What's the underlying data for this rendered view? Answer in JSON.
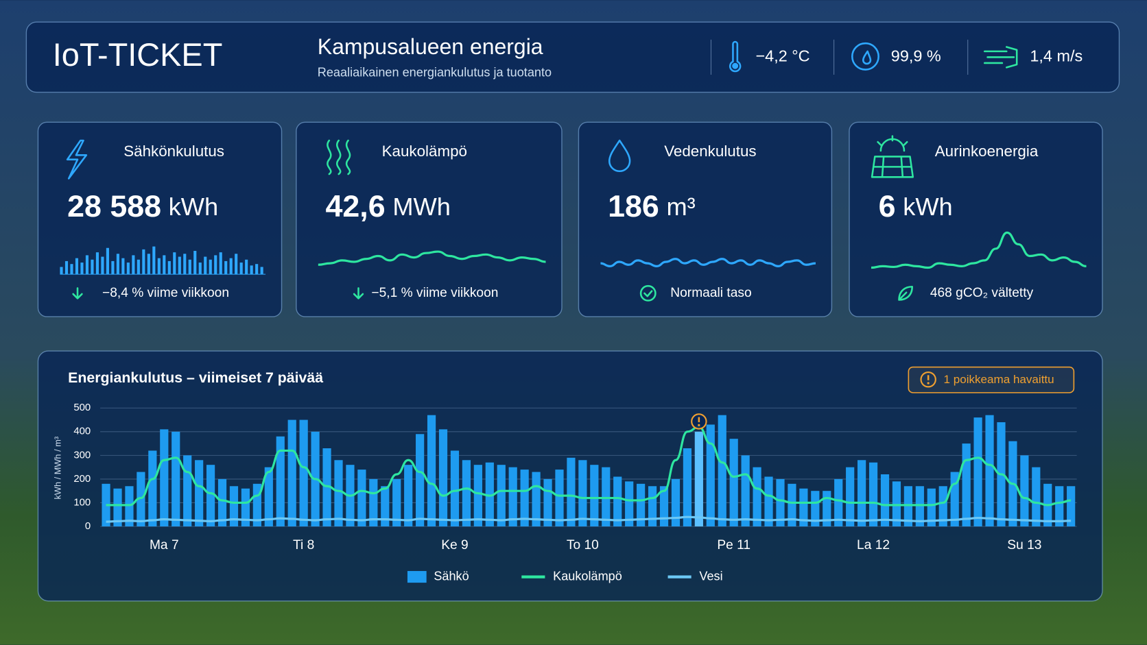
{
  "header": {
    "logo": "IoT-TICKET",
    "title": "Kampusalueen energia",
    "subtitle": "Reaaliaikainen energiankulutus ja tuotanto",
    "weather": [
      "−4,2 °C",
      "99,9 %",
      "1,4 m/s"
    ]
  },
  "cards": [
    {
      "title": "Sähkönkulutus",
      "value": "28 588",
      "unit": "kWh",
      "note": "−8,4 % viime viikkoon",
      "sparkline_type": "bar",
      "sparkline": [
        10,
        18,
        14,
        22,
        16,
        26,
        20,
        30,
        24,
        36,
        18,
        28,
        22,
        16,
        26,
        20,
        34,
        28,
        38,
        22,
        26,
        18,
        30,
        24,
        28,
        20,
        32,
        16,
        24,
        20,
        26,
        30,
        18,
        22,
        28,
        16,
        20,
        12,
        14,
        10
      ]
    },
    {
      "title": "Kaukolämpö",
      "value": "42,6",
      "unit": "MWh",
      "note": "−5,1 % viime viikkoon",
      "sparkline_type": "line",
      "sparkline": [
        8,
        10,
        14,
        12,
        16,
        20,
        14,
        22,
        18,
        24,
        26,
        20,
        16,
        20,
        22,
        18,
        14,
        18,
        16,
        12
      ]
    },
    {
      "title": "Vedenkulutus",
      "value": "186",
      "unit": "m³",
      "note": "Normaali taso",
      "sparkline_type": "line",
      "sparkline": [
        10,
        6,
        12,
        8,
        14,
        10,
        6,
        12,
        16,
        10,
        14,
        8,
        12,
        16,
        10,
        14,
        8,
        14,
        10,
        6,
        12,
        14,
        8,
        10
      ]
    },
    {
      "title": "Aurinkoenergia",
      "value": "6",
      "unit": "kWh",
      "note": "468 gCO₂ vältetty",
      "sparkline_type": "line",
      "sparkline": [
        4,
        6,
        5,
        8,
        6,
        4,
        10,
        8,
        6,
        10,
        14,
        30,
        52,
        36,
        20,
        22,
        14,
        18,
        12,
        6
      ]
    }
  ],
  "chart_data": {
    "type": "bar",
    "title": "Energiankulutus – viimeiset 7 päivää",
    "y_label": "kWh / MWh / m³",
    "alert": "1 poikkeama havaittu",
    "anomaly_index": 51,
    "categories": [
      null,
      null,
      null,
      null,
      null,
      "Ma 7",
      null,
      null,
      null,
      null,
      null,
      null,
      null,
      null,
      null,
      null,
      null,
      "Ti 8",
      null,
      null,
      null,
      null,
      null,
      null,
      null,
      null,
      null,
      null,
      null,
      null,
      "Ke 9",
      null,
      null,
      null,
      null,
      null,
      null,
      null,
      null,
      null,
      null,
      "To 10",
      null,
      null,
      null,
      null,
      null,
      null,
      null,
      null,
      null,
      null,
      null,
      null,
      "Pe 11",
      null,
      null,
      null,
      null,
      null,
      null,
      null,
      null,
      null,
      null,
      null,
      "La 12",
      null,
      null,
      null,
      null,
      null,
      null,
      null,
      null,
      null,
      null,
      null,
      null,
      "Su 13",
      null,
      null,
      null,
      null
    ],
    "ylim": [
      0,
      500
    ],
    "yticks": [
      0,
      100,
      200,
      300,
      400,
      500
    ],
    "grid": true,
    "series": [
      {
        "name": "Sähkö",
        "type": "bar",
        "color": "#1e9bf0",
        "values": [
          180,
          160,
          170,
          230,
          320,
          410,
          400,
          300,
          280,
          260,
          200,
          170,
          160,
          180,
          250,
          380,
          450,
          450,
          400,
          330,
          280,
          260,
          240,
          200,
          170,
          200,
          260,
          390,
          470,
          410,
          320,
          280,
          260,
          270,
          260,
          250,
          240,
          230,
          200,
          240,
          290,
          280,
          260,
          250,
          210,
          190,
          180,
          170,
          170,
          200,
          330,
          400,
          430,
          470,
          370,
          300,
          250,
          210,
          200,
          180,
          160,
          150,
          150,
          200,
          250,
          280,
          270,
          220,
          190,
          170,
          170,
          160,
          170,
          230,
          350,
          460,
          470,
          440,
          360,
          300,
          250,
          180,
          170,
          170
        ]
      },
      {
        "name": "Kaukolämpö",
        "type": "line",
        "color": "#2ee6a0",
        "values": [
          90,
          90,
          90,
          120,
          200,
          280,
          290,
          230,
          170,
          140,
          110,
          100,
          100,
          130,
          230,
          320,
          320,
          250,
          200,
          170,
          150,
          130,
          150,
          140,
          160,
          220,
          280,
          230,
          180,
          130,
          150,
          160,
          140,
          130,
          150,
          150,
          150,
          170,
          150,
          130,
          130,
          120,
          120,
          120,
          120,
          110,
          110,
          120,
          150,
          280,
          400,
          420,
          350,
          270,
          210,
          220,
          160,
          130,
          110,
          100,
          100,
          100,
          120,
          110,
          100,
          100,
          100,
          90,
          90,
          90,
          90,
          90,
          100,
          180,
          280,
          290,
          260,
          220,
          180,
          120,
          100,
          90,
          100,
          110
        ]
      },
      {
        "name": "Vesi",
        "type": "line",
        "color": "#6cc8f5",
        "values": [
          20,
          22,
          24,
          22,
          26,
          30,
          28,
          26,
          24,
          22,
          26,
          30,
          28,
          26,
          30,
          34,
          32,
          28,
          26,
          30,
          32,
          28,
          26,
          30,
          30,
          28,
          26,
          32,
          30,
          28,
          26,
          28,
          30,
          28,
          26,
          30,
          32,
          30,
          28,
          26,
          28,
          32,
          30,
          28,
          26,
          28,
          30,
          32,
          34,
          36,
          40,
          38,
          34,
          30,
          28,
          30,
          28,
          26,
          28,
          30,
          26,
          24,
          26,
          28,
          26,
          24,
          26,
          28,
          26,
          24,
          22,
          24,
          26,
          28,
          32,
          36,
          34,
          30,
          28,
          26,
          24,
          22,
          22,
          24
        ]
      }
    ]
  }
}
